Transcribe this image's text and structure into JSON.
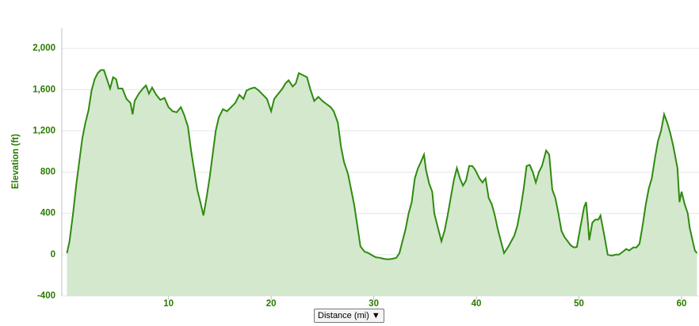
{
  "chart_data": {
    "type": "area",
    "y_label": "Elevation (ft)",
    "x_label": "Distance (mi)",
    "xlim": [
      -0.4,
      61.7
    ],
    "xticks": [
      10,
      20,
      30,
      40,
      50,
      60
    ],
    "ylim": [
      -400,
      2200
    ],
    "yticks": [
      -400,
      0,
      400,
      800,
      {
        "value": 1200,
        "label": "1,200"
      },
      {
        "value": 1600,
        "label": "1,600"
      },
      {
        "value": 2000,
        "label": "2,000"
      }
    ],
    "grid": true,
    "line_color": "#2f8a10",
    "fill_color": "#d4e8cd",
    "x": [
      0.1,
      0.35,
      0.7,
      1.0,
      1.3,
      1.6,
      1.9,
      2.2,
      2.5,
      2.8,
      3.1,
      3.4,
      3.7,
      4.0,
      4.3,
      4.6,
      4.9,
      5.1,
      5.5,
      5.9,
      6.3,
      6.5,
      6.7,
      7.1,
      7.5,
      7.8,
      8.1,
      8.4,
      8.8,
      9.2,
      9.6,
      10.0,
      10.4,
      10.8,
      11.2,
      11.5,
      11.9,
      12.2,
      12.5,
      12.8,
      13.1,
      13.4,
      13.7,
      14.0,
      14.3,
      14.6,
      14.9,
      15.3,
      15.7,
      16.1,
      16.5,
      16.9,
      17.3,
      17.6,
      18.0,
      18.4,
      18.8,
      19.2,
      19.6,
      20.0,
      20.3,
      20.7,
      21.1,
      21.4,
      21.7,
      22.1,
      22.4,
      22.7,
      23.1,
      23.5,
      23.8,
      24.2,
      24.6,
      25.0,
      25.4,
      25.8,
      26.1,
      26.5,
      26.8,
      27.1,
      27.5,
      27.8,
      28.1,
      28.4,
      28.7,
      29.1,
      29.5,
      29.9,
      30.2,
      30.6,
      31.0,
      31.4,
      31.8,
      32.2,
      32.5,
      32.8,
      33.1,
      33.4,
      33.7,
      34.0,
      34.3,
      34.6,
      34.9,
      35.1,
      35.4,
      35.7,
      35.9,
      36.3,
      36.6,
      36.9,
      37.2,
      37.5,
      37.8,
      38.1,
      38.4,
      38.7,
      39.0,
      39.3,
      39.6,
      39.9,
      40.3,
      40.6,
      40.9,
      41.2,
      41.5,
      41.8,
      42.1,
      42.4,
      42.7,
      43.1,
      43.4,
      43.7,
      44.0,
      44.3,
      44.6,
      44.9,
      45.2,
      45.5,
      45.8,
      46.1,
      46.4,
      46.8,
      47.1,
      47.4,
      47.7,
      48.0,
      48.3,
      48.6,
      48.9,
      49.2,
      49.5,
      49.8,
      50.1,
      50.5,
      50.7,
      50.9,
      51.0,
      51.3,
      51.6,
      51.9,
      52.1,
      52.5,
      52.8,
      53.2,
      53.6,
      53.9,
      54.3,
      54.6,
      54.9,
      55.3,
      55.6,
      55.9,
      56.2,
      56.5,
      56.8,
      57.1,
      57.4,
      57.7,
      58.0,
      58.3,
      58.6,
      58.9,
      59.2,
      59.6,
      59.8,
      60.0,
      60.3,
      60.6,
      60.8,
      61.0,
      61.3,
      61.5
    ],
    "values": [
      15,
      130,
      400,
      670,
      900,
      1130,
      1280,
      1400,
      1590,
      1700,
      1760,
      1790,
      1790,
      1700,
      1610,
      1720,
      1700,
      1610,
      1610,
      1510,
      1470,
      1360,
      1490,
      1560,
      1610,
      1640,
      1560,
      1620,
      1550,
      1500,
      1520,
      1430,
      1390,
      1380,
      1430,
      1360,
      1240,
      1010,
      820,
      630,
      510,
      380,
      550,
      740,
      970,
      1200,
      1330,
      1410,
      1390,
      1430,
      1470,
      1550,
      1510,
      1590,
      1610,
      1620,
      1590,
      1550,
      1510,
      1390,
      1510,
      1560,
      1610,
      1660,
      1690,
      1630,
      1660,
      1760,
      1740,
      1720,
      1610,
      1490,
      1530,
      1490,
      1460,
      1430,
      1390,
      1280,
      1050,
      900,
      780,
      630,
      480,
      280,
      80,
      30,
      15,
      -10,
      -25,
      -30,
      -40,
      -45,
      -40,
      -30,
      15,
      130,
      245,
      400,
      510,
      740,
      835,
      900,
      970,
      820,
      690,
      610,
      400,
      245,
      130,
      230,
      380,
      550,
      720,
      840,
      740,
      670,
      720,
      860,
      860,
      820,
      740,
      700,
      740,
      550,
      490,
      380,
      245,
      130,
      15,
      75,
      130,
      185,
      280,
      440,
      630,
      860,
      870,
      800,
      700,
      800,
      860,
      1010,
      970,
      630,
      550,
      400,
      230,
      170,
      130,
      90,
      70,
      75,
      245,
      460,
      510,
      280,
      140,
      310,
      340,
      340,
      380,
      170,
      0,
      -10,
      0,
      0,
      30,
      55,
      40,
      70,
      70,
      105,
      280,
      480,
      640,
      740,
      930,
      1100,
      1200,
      1360,
      1280,
      1180,
      1050,
      840,
      510,
      610,
      490,
      400,
      260,
      170,
      40,
      15
    ]
  }
}
